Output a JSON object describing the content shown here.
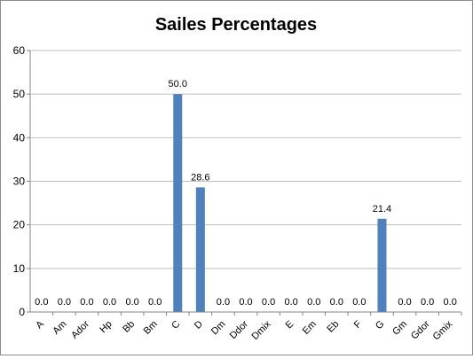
{
  "chart_data": {
    "type": "bar",
    "title": "Sailes Percentages",
    "categories": [
      "A",
      "Am",
      "Ador",
      "Hp",
      "Bb",
      "Bm",
      "C",
      "D",
      "Dm",
      "Ddor",
      "Dmix",
      "E",
      "Em",
      "Eb",
      "F",
      "G",
      "Gm",
      "Gdor",
      "Gmix"
    ],
    "values": [
      0.0,
      0.0,
      0.0,
      0.0,
      0.0,
      0.0,
      50.0,
      28.6,
      0.0,
      0.0,
      0.0,
      0.0,
      0.0,
      0.0,
      0.0,
      21.4,
      0.0,
      0.0,
      0.0
    ],
    "data_labels": [
      "0.0",
      "0.0",
      "0.0",
      "0.0",
      "0.0",
      "0.0",
      "50.0",
      "28.6",
      "0.0",
      "0.0",
      "0.0",
      "0.0",
      "0.0",
      "0.0",
      "0.0",
      "21.4",
      "0.0",
      "0.0",
      "0.0"
    ],
    "xlabel": "",
    "ylabel": "",
    "ylim": [
      0,
      60
    ],
    "yticks": [
      0,
      10,
      20,
      30,
      40,
      50,
      60
    ],
    "grid": true,
    "legend": "none",
    "colors": {
      "bar": "#4F81BD",
      "grid": "#bfbfbf",
      "axis": "#868686"
    }
  }
}
